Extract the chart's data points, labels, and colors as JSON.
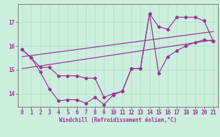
{
  "xlabel": "Windchill (Refroidissement éolien,°C)",
  "bg_color": "#cceedd",
  "line_color": "#993399",
  "xlim": [
    -0.5,
    21.5
  ],
  "ylim": [
    13.45,
    17.75
  ],
  "yticks": [
    14,
    15,
    16,
    17
  ],
  "xticks": [
    0,
    1,
    2,
    3,
    4,
    5,
    6,
    7,
    8,
    9,
    10,
    11,
    12,
    13,
    14,
    15,
    16,
    17,
    18,
    19,
    20,
    21
  ],
  "trend1_x": [
    0,
    21
  ],
  "trend1_y": [
    15.05,
    16.25
  ],
  "trend2_x": [
    0,
    21
  ],
  "trend2_y": [
    15.55,
    16.6
  ],
  "zigzag_x": [
    0,
    1,
    2,
    3,
    4,
    5,
    6,
    7,
    8,
    9,
    10,
    11,
    12,
    13,
    14,
    15,
    16,
    17,
    18,
    19,
    20,
    21
  ],
  "zigzag_y": [
    15.85,
    15.5,
    14.9,
    14.2,
    13.7,
    13.75,
    13.75,
    13.6,
    13.85,
    13.55,
    13.95,
    14.1,
    15.05,
    15.05,
    17.35,
    16.8,
    16.7,
    17.2,
    17.2,
    17.2,
    17.05,
    16.2
  ],
  "upper_x": [
    0,
    1,
    2,
    3,
    4,
    5,
    6,
    7,
    8,
    9,
    10,
    11,
    12,
    13,
    14,
    15,
    16,
    17,
    18,
    19,
    20,
    21
  ],
  "upper_y": [
    15.85,
    15.5,
    15.1,
    15.1,
    14.75,
    14.75,
    14.75,
    14.65,
    14.65,
    13.85,
    14.0,
    14.1,
    15.05,
    15.05,
    17.35,
    14.85,
    15.55,
    15.8,
    16.0,
    16.15,
    16.25,
    16.2
  ]
}
